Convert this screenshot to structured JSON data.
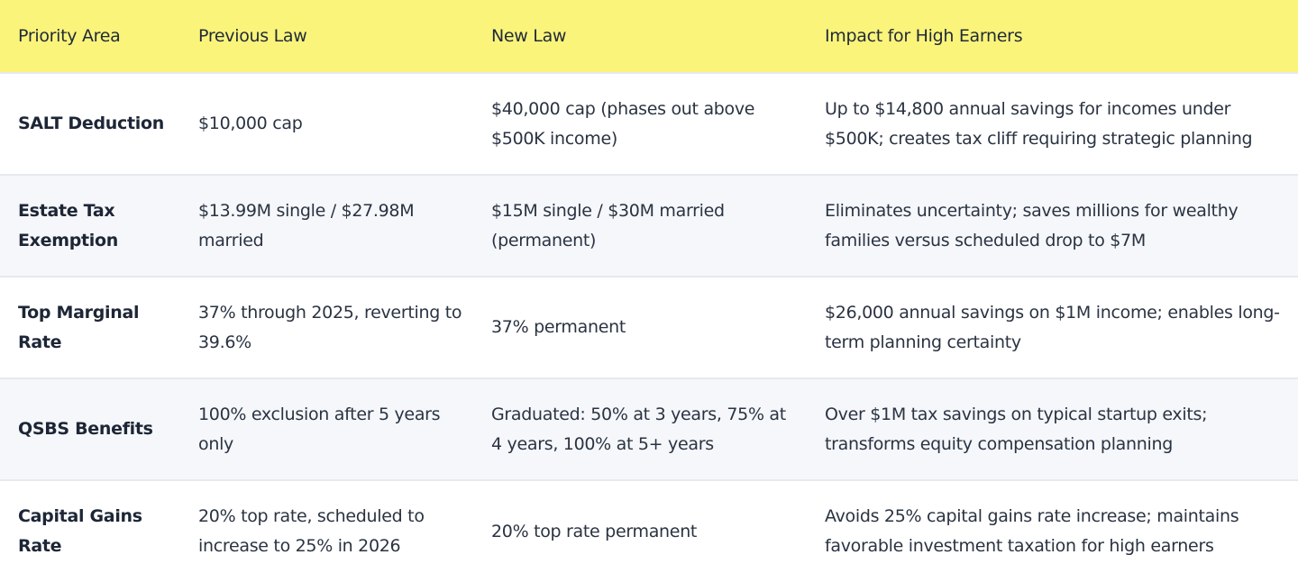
{
  "table": {
    "columns": [
      "Priority Area",
      "Previous Law",
      "New Law",
      "Impact for High Earners"
    ],
    "rows": [
      [
        "SALT Deduction",
        "$10,000 cap",
        "$40,000 cap (phases out above $500K income)",
        "Up to $14,800 annual savings for incomes under $500K; creates tax cliff requiring strategic planning"
      ],
      [
        "Estate Tax Exemption",
        "$13.99M single / $27.98M married",
        "$15M single / $30M married (permanent)",
        "Eliminates uncertainty; saves millions for wealthy families versus scheduled drop to $7M"
      ],
      [
        "Top Marginal Rate",
        "37% through 2025, reverting to 39.6%",
        "37% permanent",
        "$26,000 annual savings on $1M income; enables long-term planning certainty"
      ],
      [
        "QSBS Benefits",
        "100% exclusion after 5 years only",
        "Graduated: 50% at 3 years, 75% at 4 years, 100% at 5+ years",
        "Over $1M tax savings on typical startup exits; transforms equity compensation planning"
      ],
      [
        "Capital Gains Rate",
        "20% top rate, scheduled to increase to 25% in 2026",
        "20% top rate permanent",
        "Avoids 25% capital gains rate increase; maintains favorable investment taxation for high earners"
      ]
    ]
  }
}
